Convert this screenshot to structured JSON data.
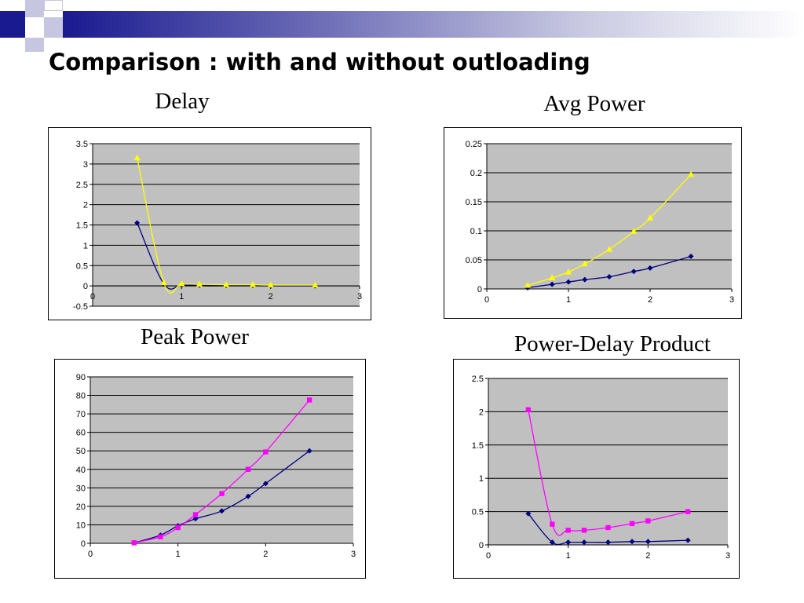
{
  "slide": {
    "title": "Comparison : with and without outloading"
  },
  "colors": {
    "band_start": "#1a1a90",
    "plot_background": "#c0c0c0",
    "series_navy": "#000080",
    "series_yellow": "#ffff00",
    "series_magenta": "#ff00ff"
  },
  "chart_data": [
    {
      "type": "line",
      "title": "Delay",
      "xlabel": "",
      "ylabel": "",
      "xlim": [
        0,
        3
      ],
      "ylim": [
        -0.5,
        3.5
      ],
      "x_ticks": [
        "0",
        "1",
        "2",
        "3"
      ],
      "y_ticks": [
        "-0.5",
        "0",
        "0.5",
        "1",
        "1.5",
        "2",
        "2.5",
        "3",
        "3.5"
      ],
      "grid": true,
      "legend": "none",
      "series": [
        {
          "color": "#000080",
          "marker": "diamond",
          "x": [
            0.5,
            0.8,
            1.0,
            1.2,
            1.5,
            1.8,
            2.0,
            2.5
          ],
          "y": [
            1.55,
            0.05,
            0.02,
            0.02,
            0.01,
            0.01,
            0.0,
            0.0
          ]
        },
        {
          "color": "#ffff00",
          "marker": "triangle",
          "x": [
            0.5,
            0.8,
            1.0,
            1.2,
            1.5,
            1.8,
            2.0,
            2.5
          ],
          "y": [
            3.15,
            0.08,
            0.05,
            0.04,
            0.03,
            0.03,
            0.02,
            0.02
          ]
        }
      ]
    },
    {
      "type": "line",
      "title": "Avg Power",
      "xlabel": "",
      "ylabel": "",
      "xlim": [
        0,
        3
      ],
      "ylim": [
        0,
        0.25
      ],
      "x_ticks": [
        "0",
        "1",
        "2",
        "3"
      ],
      "y_ticks": [
        "0",
        "0.05",
        "0.1",
        "0.15",
        "0.2",
        "0.25"
      ],
      "grid": true,
      "legend": "none",
      "series": [
        {
          "color": "#000080",
          "marker": "diamond",
          "x": [
            0.5,
            0.8,
            1.0,
            1.2,
            1.5,
            1.8,
            2.0,
            2.5
          ],
          "y": [
            0.002,
            0.008,
            0.012,
            0.016,
            0.021,
            0.03,
            0.036,
            0.056
          ]
        },
        {
          "color": "#ffff00",
          "marker": "triangle",
          "x": [
            0.5,
            0.8,
            1.0,
            1.2,
            1.5,
            1.8,
            2.0,
            2.5
          ],
          "y": [
            0.006,
            0.019,
            0.029,
            0.043,
            0.068,
            0.099,
            0.122,
            0.197
          ]
        }
      ]
    },
    {
      "type": "line",
      "title": "Peak Power",
      "xlabel": "",
      "ylabel": "",
      "xlim": [
        0,
        3
      ],
      "ylim": [
        0,
        90
      ],
      "x_ticks": [
        "0",
        "1",
        "2",
        "3"
      ],
      "y_ticks": [
        "0",
        "10",
        "20",
        "30",
        "40",
        "50",
        "60",
        "70",
        "80",
        "90"
      ],
      "grid": true,
      "legend": "none",
      "series": [
        {
          "color": "#000080",
          "marker": "diamond",
          "x": [
            0.5,
            0.8,
            1.0,
            1.2,
            1.5,
            1.8,
            2.0,
            2.5
          ],
          "y": [
            0.3,
            4.4,
            9.5,
            13.3,
            17.5,
            25.4,
            32.3,
            50.0
          ]
        },
        {
          "color": "#ff00ff",
          "marker": "square",
          "x": [
            0.5,
            0.8,
            1.0,
            1.2,
            1.5,
            1.8,
            2.0,
            2.5
          ],
          "y": [
            0.3,
            3.5,
            8.5,
            15.5,
            26.9,
            40.0,
            49.4,
            77.5
          ]
        }
      ]
    },
    {
      "type": "line",
      "title": "Power-Delay Product",
      "xlabel": "",
      "ylabel": "",
      "xlim": [
        0,
        3
      ],
      "ylim": [
        0,
        2.5
      ],
      "x_ticks": [
        "0",
        "1",
        "2",
        "3"
      ],
      "y_ticks": [
        "0",
        "0.5",
        "1",
        "1.5",
        "2",
        "2.5"
      ],
      "grid": true,
      "legend": "none",
      "series": [
        {
          "color": "#000080",
          "marker": "diamond",
          "x": [
            0.5,
            0.8,
            1.0,
            1.2,
            1.5,
            1.8,
            2.0,
            2.5
          ],
          "y": [
            0.47,
            0.04,
            0.04,
            0.04,
            0.04,
            0.05,
            0.05,
            0.07
          ]
        },
        {
          "color": "#ff00ff",
          "marker": "square",
          "x": [
            0.5,
            0.8,
            1.0,
            1.2,
            1.5,
            1.8,
            2.0,
            2.5
          ],
          "y": [
            2.03,
            0.31,
            0.22,
            0.22,
            0.26,
            0.32,
            0.36,
            0.5
          ]
        }
      ]
    }
  ]
}
